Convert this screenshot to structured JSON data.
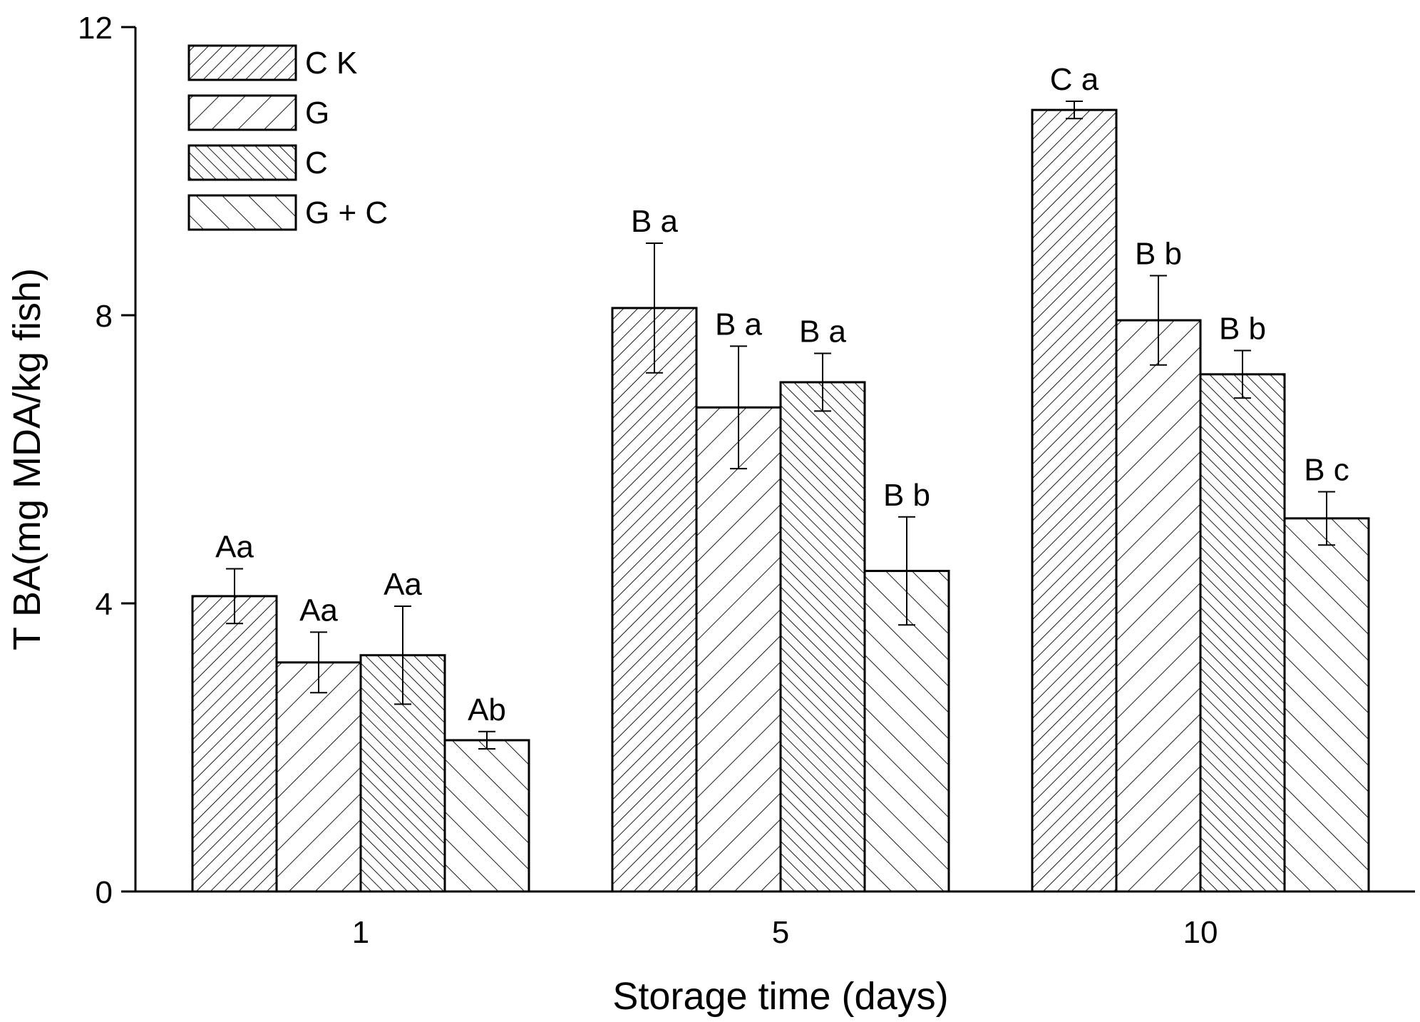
{
  "chart_data": {
    "type": "bar",
    "title": "",
    "xlabel": "Storage time (days)",
    "ylabel": "T BA(mg MDA/kg fish)",
    "ylim": [
      0,
      12
    ],
    "yticks": [
      "0",
      "4",
      "8",
      "12"
    ],
    "categories": [
      "1",
      "5",
      "10"
    ],
    "grid": false,
    "legend_position": "top-left",
    "series": [
      {
        "name": "C K",
        "pattern": "diag-fine",
        "values": [
          4.1,
          8.1,
          10.85
        ],
        "errors": [
          0.38,
          0.9,
          0.12
        ],
        "labels": [
          "Aa",
          "B a",
          "C a"
        ]
      },
      {
        "name": "G",
        "pattern": "diag-wide",
        "values": [
          3.18,
          6.72,
          7.93
        ],
        "errors": [
          0.42,
          0.85,
          0.62
        ],
        "labels": [
          "Aa",
          "B a",
          "B b"
        ]
      },
      {
        "name": "C",
        "pattern": "back-fine",
        "values": [
          3.28,
          7.07,
          7.18
        ],
        "errors": [
          0.68,
          0.4,
          0.33
        ],
        "labels": [
          "Aa",
          "B a",
          "B b"
        ]
      },
      {
        "name": "G + C",
        "pattern": "back-wide",
        "values": [
          2.1,
          4.45,
          5.18
        ],
        "errors": [
          0.12,
          0.75,
          0.37
        ],
        "labels": [
          "Ab",
          "B b",
          "B c"
        ]
      }
    ]
  }
}
